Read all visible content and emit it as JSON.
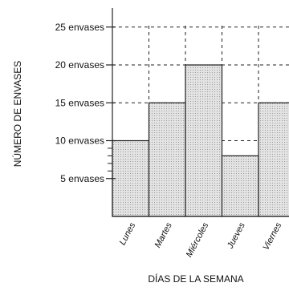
{
  "chart_data": {
    "type": "bar",
    "categories": [
      "Lunes",
      "Martes",
      "Miércoles",
      "Jueves",
      "Viernes"
    ],
    "values": [
      10,
      15,
      20,
      8,
      15
    ],
    "xlabel": "DÍAS DE LA SEMANA",
    "ylabel": "NÚMERO DE ENVASES",
    "ylim": [
      0,
      25
    ],
    "y_ticks": [
      {
        "value": 5,
        "label": "5 envases"
      },
      {
        "value": 10,
        "label": "10 envases"
      },
      {
        "value": 15,
        "label": "15 envases"
      },
      {
        "value": 20,
        "label": "20 envases"
      },
      {
        "value": 25,
        "label": "25 envases"
      }
    ],
    "minor_ticks": [
      6,
      7,
      8,
      9
    ],
    "grid": "dashed",
    "colors": {
      "bar_fill": "#d9d9d9",
      "bar_stroke": "#222222",
      "axis": "#222222",
      "grid": "#222222"
    }
  }
}
